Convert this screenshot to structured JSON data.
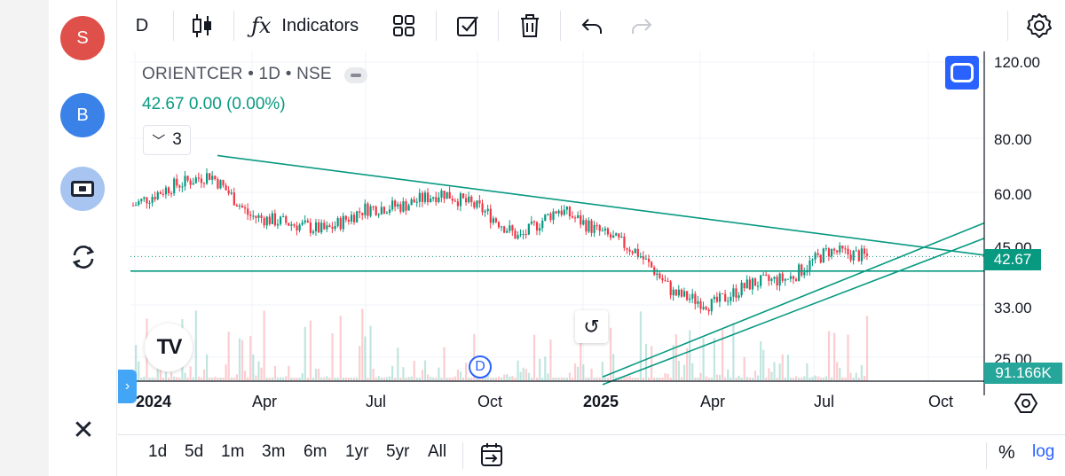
{
  "left_panel": {
    "profile_s": "S",
    "profile_b": "B"
  },
  "toolbar": {
    "interval": "D",
    "indicators_label": "Indicators"
  },
  "legend": {
    "symbol": "ORIENTCER",
    "interval": "1D",
    "exchange": "NSE",
    "last_price": "42.67",
    "change": "0.00",
    "change_pct": "(0.00%)",
    "indicator_count": "3"
  },
  "price_scale": {
    "labels": [
      "120.00",
      "80.00",
      "60.00",
      "45.00",
      "33.00",
      "25.00"
    ],
    "current_price_tag": "42.67",
    "volume_tag": "91.166K",
    "scale": "log"
  },
  "time_axis": {
    "labels": [
      {
        "text": "2024",
        "year": true
      },
      {
        "text": "Apr",
        "year": false
      },
      {
        "text": "Jul",
        "year": false
      },
      {
        "text": "Oct",
        "year": false
      },
      {
        "text": "2025",
        "year": true
      },
      {
        "text": "Apr",
        "year": false
      },
      {
        "text": "Jul",
        "year": false
      },
      {
        "text": "Oct",
        "year": false
      }
    ]
  },
  "markers": {
    "dividend": "D"
  },
  "bottom_bar": {
    "ranges": [
      "1d",
      "5d",
      "1m",
      "3m",
      "6m",
      "1yr",
      "5yr",
      "All"
    ],
    "percent": "%",
    "log": "log"
  },
  "colors": {
    "up": "#089981",
    "down": "#f23645",
    "trendline": "#089981",
    "accent": "#2962ff"
  },
  "chart_data": {
    "type": "candlestick",
    "symbol": "ORIENTCER",
    "interval": "1D",
    "ylim": [
      22,
      120
    ],
    "log_scale": true,
    "x": [
      "2024-01",
      "2024-02",
      "2024-03",
      "2024-04",
      "2024-05",
      "2024-06",
      "2024-07",
      "2024-08",
      "2024-09",
      "2024-10",
      "2024-11",
      "2024-12",
      "2025-01",
      "2025-02",
      "2025-03",
      "2025-04",
      "2025-05",
      "2025-06",
      "2025-07",
      "2025-08"
    ],
    "close": [
      56,
      62,
      66,
      53,
      51,
      49,
      55,
      56,
      60,
      55,
      47,
      55,
      49,
      44,
      35,
      33,
      37,
      38,
      44,
      42.67
    ],
    "last": 42.67
  }
}
